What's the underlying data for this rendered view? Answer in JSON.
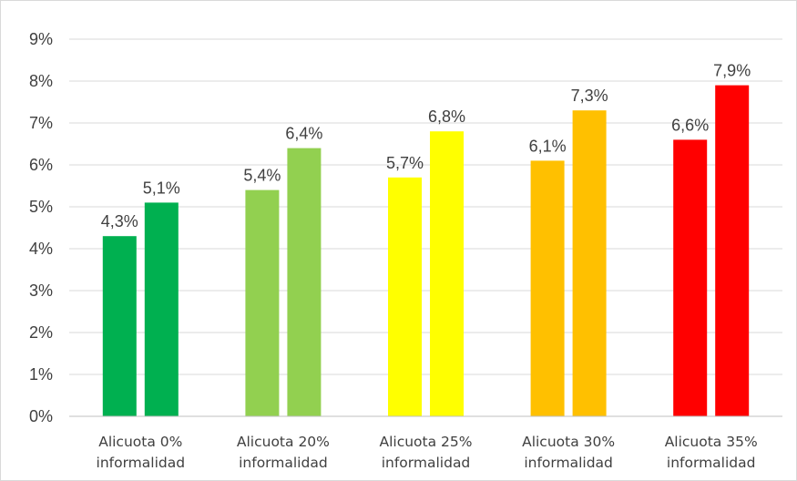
{
  "chart_data": {
    "type": "bar",
    "categories": [
      [
        "Alicuota 0%",
        "informalidad"
      ],
      [
        "Alicuota 20%",
        "informalidad"
      ],
      [
        "Alicuota 25%",
        "informalidad"
      ],
      [
        "Alicuota 30%",
        "informalidad"
      ],
      [
        "Alicuota 35%",
        "informalidad"
      ]
    ],
    "series": [
      {
        "values": [
          4.3,
          5.4,
          5.7,
          6.1,
          6.6
        ],
        "labels": [
          "4,3%",
          "5,4%",
          "5,7%",
          "6,1%",
          "6,6%"
        ]
      },
      {
        "values": [
          5.1,
          6.4,
          6.8,
          7.3,
          7.9
        ],
        "labels": [
          "5,1%",
          "6,4%",
          "6,8%",
          "7,3%",
          "7,9%"
        ]
      }
    ],
    "bar_colors": [
      "#00b050",
      "#92d050",
      "#ffff00",
      "#ffc000",
      "#ff0000"
    ],
    "ylim": [
      0,
      9
    ],
    "yticks": [
      "0%",
      "1%",
      "2%",
      "3%",
      "4%",
      "5%",
      "6%",
      "7%",
      "8%",
      "9%"
    ],
    "grid": true,
    "legend": "none",
    "title": "",
    "xlabel": "",
    "ylabel": ""
  }
}
